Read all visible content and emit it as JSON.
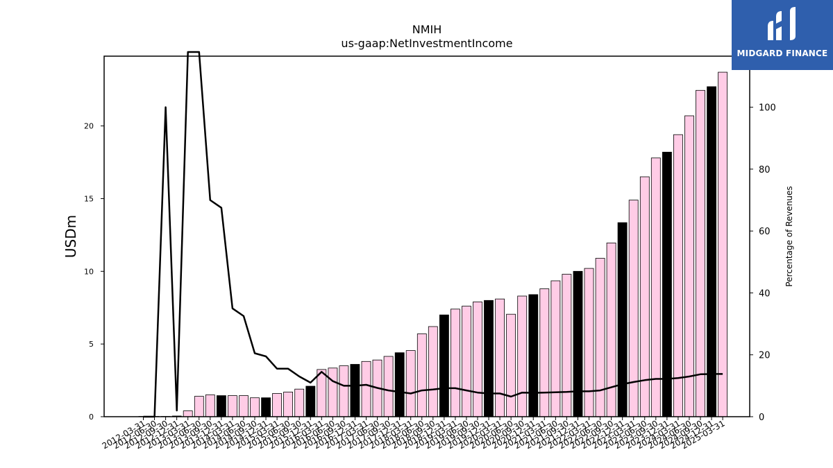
{
  "logo": {
    "text": "MIDGARD FINANCE",
    "color": "#2f5fad"
  },
  "chart_data": {
    "type": "bar",
    "title": "NMIH",
    "subtitle": "us-gaap:NetInvestmentIncome",
    "ylabel": "USDm",
    "y2label": "Percentage of Revenues",
    "ylim": [
      0,
      24.8
    ],
    "y2lim": [
      0,
      116.5
    ],
    "yticks": [
      0,
      5,
      10,
      15,
      20
    ],
    "y2ticks": [
      0,
      20,
      40,
      60,
      80,
      100
    ],
    "grid": false,
    "colors": {
      "bar": "#ffcce6",
      "bar_q4": "#000000",
      "line": "#000000"
    },
    "categories": [
      "2012-03-31",
      "2012-06-30",
      "2012-09-30",
      "2012-12-31",
      "2013-03-31",
      "2013-06-30",
      "2013-09-30",
      "2013-12-31",
      "2014-03-31",
      "2014-06-30",
      "2014-09-30",
      "2014-12-31",
      "2015-03-31",
      "2015-06-30",
      "2015-09-30",
      "2015-12-31",
      "2016-03-31",
      "2016-06-30",
      "2016-09-30",
      "2016-12-31",
      "2017-03-31",
      "2017-06-30",
      "2017-09-30",
      "2017-12-31",
      "2018-03-31",
      "2018-06-30",
      "2018-09-30",
      "2018-12-31",
      "2019-03-31",
      "2019-06-30",
      "2019-09-30",
      "2019-12-31",
      "2020-03-31",
      "2020-06-30",
      "2020-09-30",
      "2020-12-31",
      "2021-03-31",
      "2021-06-30",
      "2021-09-30",
      "2021-12-31",
      "2022-03-31",
      "2022-06-30",
      "2022-09-30",
      "2022-12-31",
      "2023-03-31",
      "2023-06-30",
      "2023-09-30",
      "2023-12-31",
      "2024-03-31",
      "2024-06-30",
      "2024-09-30",
      "2024-12-31",
      "2025-03-31"
    ],
    "series": [
      {
        "kind": "bar",
        "axis": "left",
        "values": [
          0.02,
          0.02,
          0.02,
          0.05,
          0.4,
          1.4,
          1.5,
          1.45,
          1.45,
          1.45,
          1.3,
          1.3,
          1.6,
          1.7,
          1.9,
          2.1,
          3.25,
          3.35,
          3.5,
          3.6,
          3.8,
          3.9,
          4.15,
          4.4,
          4.55,
          5.7,
          6.2,
          7.0,
          7.4,
          7.6,
          7.9,
          8.0,
          8.1,
          7.05,
          8.3,
          8.4,
          8.8,
          9.35,
          9.8,
          10.0,
          10.2,
          10.9,
          11.95,
          13.35,
          14.9,
          16.5,
          17.8,
          18.2,
          19.4,
          20.7,
          22.45,
          22.7,
          23.7
        ]
      },
      {
        "kind": "line",
        "axis": "right",
        "values": [
          0,
          0,
          100,
          2,
          120,
          120,
          70,
          67.5,
          35,
          32.5,
          20.5,
          19.5,
          15.5,
          15.5,
          13,
          11,
          14.5,
          11.5,
          10,
          10,
          10.3,
          9.3,
          8.5,
          8,
          7.5,
          8.5,
          8.8,
          9.2,
          9.2,
          8.5,
          7.8,
          7.5,
          7.5,
          6.5,
          7.8,
          7.7,
          7.8,
          7.9,
          8,
          8.2,
          8.2,
          8.5,
          9.5,
          10.5,
          11.2,
          11.8,
          12.2,
          12.2,
          12.5,
          13,
          13.7,
          13.8,
          13.8
        ]
      }
    ]
  }
}
